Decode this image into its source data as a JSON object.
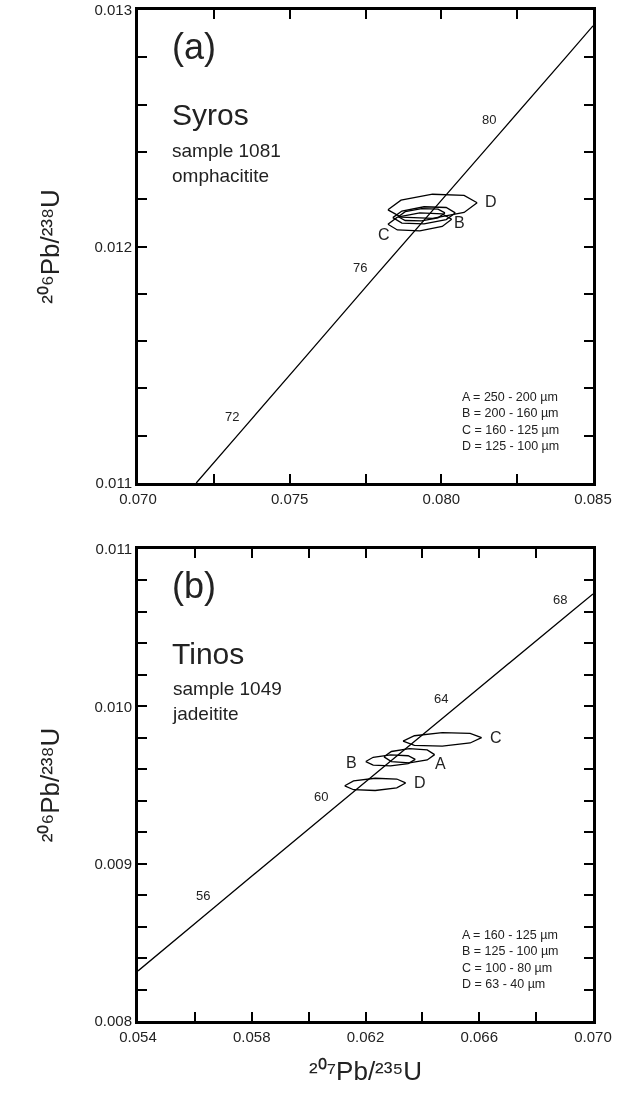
{
  "chart_data": [
    {
      "type": "line",
      "title": "(a)",
      "subtitle": "Syros",
      "ylabel": "²⁰⁶Pb/²³⁸U",
      "line_style": "solid",
      "xlim": [
        0.07,
        0.085
      ],
      "xticks": [
        {
          "value": 0.07,
          "label": "0.070"
        },
        {
          "value": 0.0725,
          "label": null
        },
        {
          "value": 0.075,
          "label": "0.075"
        },
        {
          "value": 0.0775,
          "label": null
        },
        {
          "value": 0.08,
          "label": "0.080"
        },
        {
          "value": 0.0825,
          "label": null
        },
        {
          "value": 0.085,
          "label": "0.085"
        }
      ],
      "ylim": [
        0.011,
        0.013
      ],
      "yticks": [
        {
          "value": 0.011,
          "label": "0.011"
        },
        {
          "value": 0.0112,
          "label": null
        },
        {
          "value": 0.0114,
          "label": null
        },
        {
          "value": 0.0116,
          "label": null
        },
        {
          "value": 0.0118,
          "label": null
        },
        {
          "value": 0.012,
          "label": "0.012"
        },
        {
          "value": 0.0122,
          "label": null
        },
        {
          "value": 0.0124,
          "label": null
        },
        {
          "value": 0.0126,
          "label": null
        },
        {
          "value": 0.0128,
          "label": null
        },
        {
          "value": 0.013,
          "label": "0.013"
        }
      ],
      "series": [
        {
          "color": "#000000",
          "x": [
            0.07192,
            0.07348,
            0.0756,
            0.07772,
            0.07985,
            0.08198,
            0.08411,
            0.085
          ],
          "values": [
            0.011,
            0.011231,
            0.011545,
            0.01186,
            0.012173,
            0.012487,
            0.012801,
            0.012933
          ]
        },
        {
          "color": "#000000",
          "x": [
            0.07824,
            0.07867,
            0.07971,
            0.08075,
            0.08118
          ],
          "values": [
            0.012155,
            0.012196,
            0.012221,
            0.012216,
            0.012185
          ]
        },
        {
          "color": "#000000",
          "x": [
            0.07824,
            0.07867,
            0.07971,
            0.08075,
            0.08118
          ],
          "values": [
            0.012155,
            0.012124,
            0.012119,
            0.012144,
            0.012185
          ]
        },
        {
          "color": "#000000",
          "x": [
            0.07824,
            0.07855,
            0.07929,
            0.08003,
            0.08034
          ],
          "values": [
            0.012094,
            0.012124,
            0.012142,
            0.012138,
            0.012115
          ]
        },
        {
          "color": "#000000",
          "x": [
            0.07824,
            0.07855,
            0.07929,
            0.08003,
            0.08034
          ],
          "values": [
            0.012094,
            0.01207,
            0.012066,
            0.012085,
            0.012115
          ]
        },
        {
          "color": "#000000",
          "x": [
            0.0784,
            0.0787,
            0.07943,
            0.08016,
            0.08046
          ],
          "values": [
            0.012122,
            0.01215,
            0.012168,
            0.012165,
            0.012142
          ]
        },
        {
          "color": "#000000",
          "x": [
            0.0784,
            0.0787,
            0.07943,
            0.08016,
            0.08046
          ],
          "values": [
            0.012122,
            0.012099,
            0.012096,
            0.012114,
            0.012142
          ]
        },
        {
          "color": "#000000",
          "x": [
            0.07858,
            0.07881,
            0.07935,
            0.07989,
            0.08012
          ],
          "values": [
            0.012126,
            0.012147,
            0.01216,
            0.012158,
            0.012142
          ]
        },
        {
          "color": "#000000",
          "x": [
            0.07858,
            0.07881,
            0.07935,
            0.07989,
            0.08012
          ],
          "values": [
            0.012126,
            0.01211,
            0.012108,
            0.012121,
            0.012142
          ]
        }
      ],
      "annotations": [
        "sample 1081\nomphacitite",
        "A = 250 - 200 µm\nB = 200 - 160 µm\nC = 160 - 125 µm\nD = 125 - 100 µm",
        {
          "text": "D",
          "x": 0.08118,
          "y": 0.012185
        },
        {
          "text": "C",
          "x": 0.07855,
          "y": 0.01207
        },
        {
          "text": "B",
          "x": 0.08016,
          "y": 0.012114
        },
        {
          "text": "72",
          "x": 0.07348,
          "y": 0.011231
        },
        {
          "text": "76",
          "x": 0.07772,
          "y": 0.01186
        },
        {
          "text": "80",
          "x": 0.08198,
          "y": 0.012487
        }
      ]
    },
    {
      "type": "line",
      "title": "(b)",
      "subtitle": "Tinos",
      "xlabel": "²⁰⁷Pb/²³⁵U",
      "ylabel": "²⁰⁶Pb/²³⁸U",
      "line_style": "solid",
      "xlim": [
        0.054,
        0.07
      ],
      "xticks": [
        {
          "value": 0.054,
          "label": "0.054"
        },
        {
          "value": 0.056,
          "label": null
        },
        {
          "value": 0.058,
          "label": "0.058"
        },
        {
          "value": 0.06,
          "label": null
        },
        {
          "value": 0.062,
          "label": "0.062"
        },
        {
          "value": 0.064,
          "label": null
        },
        {
          "value": 0.066,
          "label": "0.066"
        },
        {
          "value": 0.068,
          "label": null
        },
        {
          "value": 0.07,
          "label": "0.070"
        }
      ],
      "ylim": [
        0.008,
        0.011
      ],
      "yticks": [
        {
          "value": 0.008,
          "label": "0.008"
        },
        {
          "value": 0.0082,
          "label": null
        },
        {
          "value": 0.0084,
          "label": null
        },
        {
          "value": 0.0086,
          "label": null
        },
        {
          "value": 0.0088,
          "label": null
        },
        {
          "value": 0.009,
          "label": "0.009"
        },
        {
          "value": 0.0092,
          "label": null
        },
        {
          "value": 0.0094,
          "label": null
        },
        {
          "value": 0.0096,
          "label": null
        },
        {
          "value": 0.0098,
          "label": null
        },
        {
          "value": 0.01,
          "label": "0.010"
        },
        {
          "value": 0.0102,
          "label": null
        },
        {
          "value": 0.0104,
          "label": null
        },
        {
          "value": 0.0106,
          "label": null
        },
        {
          "value": 0.0108,
          "label": null
        },
        {
          "value": 0.011,
          "label": "0.011"
        }
      ],
      "series": [
        {
          "color": "#000000",
          "x": [
            0.054,
            0.0567,
            0.06087,
            0.06506,
            0.06926,
            0.07
          ],
          "values": [
            0.008318,
            0.008725,
            0.009351,
            0.009977,
            0.010605,
            0.010714
          ]
        },
        {
          "color": "#000000",
          "x": [
            0.06332,
            0.06372,
            0.0647,
            0.06568,
            0.06608
          ],
          "values": [
            0.009779,
            0.009813,
            0.009833,
            0.009828,
            0.009801
          ]
        },
        {
          "color": "#000000",
          "x": [
            0.06332,
            0.06372,
            0.0647,
            0.06568,
            0.06608
          ],
          "values": [
            0.009779,
            0.009752,
            0.009747,
            0.009767,
            0.009801
          ]
        },
        {
          "color": "#000000",
          "x": [
            0.06265,
            0.06291,
            0.06354,
            0.06417,
            0.06443
          ],
          "values": [
            0.009679,
            0.009713,
            0.009731,
            0.009723,
            0.009693
          ]
        },
        {
          "color": "#000000",
          "x": [
            0.06265,
            0.06291,
            0.06354,
            0.06417,
            0.06443
          ],
          "values": [
            0.009679,
            0.009649,
            0.009641,
            0.009659,
            0.009693
          ]
        },
        {
          "color": "#000000",
          "x": [
            0.06201,
            0.06227,
            0.06288,
            0.0635,
            0.06375
          ],
          "values": [
            0.009649,
            0.009676,
            0.009691,
            0.009686,
            0.009663
          ]
        },
        {
          "color": "#000000",
          "x": [
            0.06201,
            0.06227,
            0.06288,
            0.0635,
            0.06375
          ],
          "values": [
            0.009649,
            0.009626,
            0.009621,
            0.009636,
            0.009663
          ]
        },
        {
          "color": "#000000",
          "x": [
            0.06127,
            0.06158,
            0.06234,
            0.0631,
            0.06341
          ],
          "values": [
            0.009495,
            0.009526,
            0.009543,
            0.009538,
            0.009513
          ]
        },
        {
          "color": "#000000",
          "x": [
            0.06127,
            0.06158,
            0.06234,
            0.0631,
            0.06341
          ],
          "values": [
            0.009495,
            0.00947,
            0.009465,
            0.009482,
            0.009513
          ]
        }
      ],
      "annotations": [
        "sample 1049\njadeitite",
        "A = 160 - 125 µm\nB = 125 - 100 µm\nC = 100 - 80 µm\nD = 63 - 40 µm",
        {
          "text": "C",
          "x": 0.06608,
          "y": 0.009801
        },
        {
          "text": "A",
          "x": 0.06417,
          "y": 0.009659
        },
        {
          "text": "B",
          "x": 0.06201,
          "y": 0.009649
        },
        {
          "text": "D",
          "x": 0.06341,
          "y": 0.009513
        },
        {
          "text": "56",
          "x": 0.0567,
          "y": 0.008725
        },
        {
          "text": "60",
          "x": 0.06087,
          "y": 0.009351
        },
        {
          "text": "64",
          "x": 0.06506,
          "y": 0.009977
        },
        {
          "text": "68",
          "x": 0.06926,
          "y": 0.010605
        }
      ]
    }
  ]
}
